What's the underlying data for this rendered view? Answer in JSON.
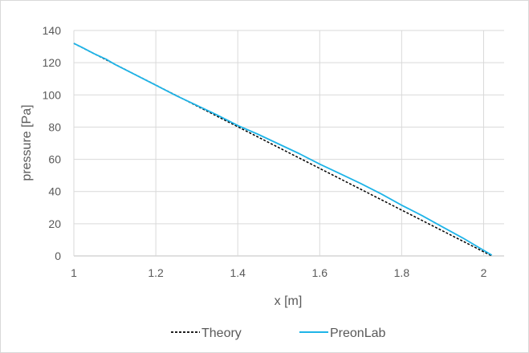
{
  "chart_data": {
    "type": "line",
    "title": "",
    "xlabel": "x [m]",
    "ylabel": "pressure [Pa]",
    "xlim": [
      1,
      2.05
    ],
    "ylim": [
      0,
      140
    ],
    "x_ticks": [
      1,
      1.2,
      1.4,
      1.6,
      1.8,
      2
    ],
    "x_tick_labels": [
      "1",
      "1.2",
      "1.4",
      "1.6",
      "1.8",
      "2"
    ],
    "y_ticks": [
      0,
      20,
      40,
      60,
      80,
      100,
      120,
      140
    ],
    "y_tick_labels": [
      "0",
      "20",
      "40",
      "60",
      "80",
      "100",
      "120",
      "140"
    ],
    "grid": true,
    "legend": "bottom",
    "series": [
      {
        "name": "Theory",
        "color": "#000000",
        "style": "dashed",
        "x": [
          1.0,
          2.02
        ],
        "y": [
          132,
          0
        ]
      },
      {
        "name": "PreonLab",
        "color": "#1fb4e8",
        "style": "solid",
        "x": [
          1.0,
          1.02,
          1.05,
          1.08,
          1.1,
          1.15,
          1.2,
          1.25,
          1.3,
          1.35,
          1.4,
          1.45,
          1.5,
          1.55,
          1.6,
          1.65,
          1.7,
          1.75,
          1.8,
          1.85,
          1.9,
          1.95,
          1.98,
          2.0,
          2.02
        ],
        "y": [
          132,
          129.5,
          125.5,
          122,
          119,
          112.5,
          106,
          99.5,
          93.5,
          87.5,
          81,
          75.5,
          69.5,
          63.5,
          57,
          51,
          45,
          38.5,
          31.5,
          25,
          18,
          11,
          6.5,
          3.5,
          0.5
        ]
      }
    ]
  }
}
